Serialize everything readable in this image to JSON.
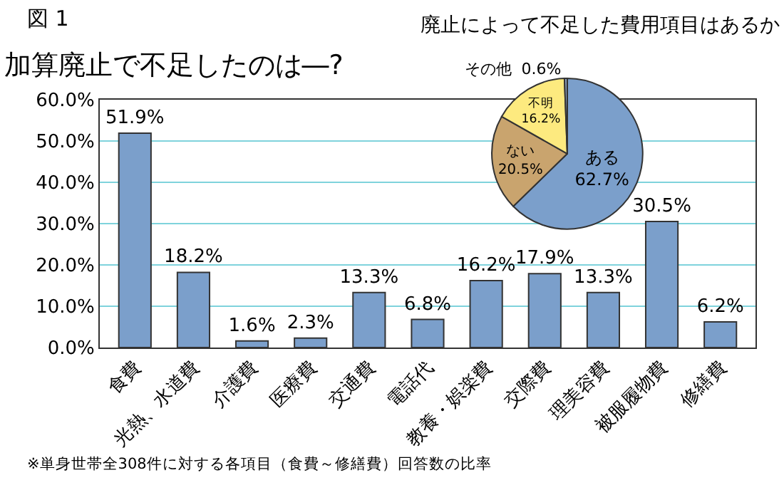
{
  "chart_data": [
    {
      "type": "bar",
      "title": "加算廃止で不足したのは―?",
      "annotations": [
        "図 1",
        "※単身世帯全308件に対する各項目（食費～修繕費）回答数の比率"
      ],
      "categories": [
        "食費",
        "光熱、水道費",
        "介護費",
        "医療費",
        "交通費",
        "電話代",
        "教養・娯楽費",
        "交際費",
        "理美容費",
        "被服履物費",
        "修繕費"
      ],
      "values": [
        51.9,
        18.2,
        1.6,
        2.3,
        13.3,
        6.8,
        16.2,
        17.9,
        13.3,
        30.5,
        6.2
      ],
      "value_labels": [
        "51.9%",
        "18.2%",
        "1.6%",
        "2.3%",
        "13.3%",
        "6.8%",
        "16.2%",
        "17.9%",
        "13.3%",
        "30.5%",
        "6.2%"
      ],
      "color": "#7b9fcb",
      "ylim": [
        0,
        60
      ],
      "yticks": [
        {
          "value": 0,
          "label": "0.0%"
        },
        {
          "value": 10,
          "label": "10.0%"
        },
        {
          "value": 20,
          "label": "20.0%"
        },
        {
          "value": 30,
          "label": "30.0%"
        },
        {
          "value": 40,
          "label": "40.0%"
        },
        {
          "value": 50,
          "label": "50.0%"
        },
        {
          "value": 60,
          "label": "60.0%"
        }
      ],
      "grid": "y"
    },
    {
      "type": "pie",
      "title": "廃止によって不足した費用項目はあるか",
      "categories": [
        "ある",
        "ない",
        "不明",
        "その他"
      ],
      "values": [
        62.7,
        20.5,
        16.2,
        0.6
      ],
      "value_labels": [
        "62.7%",
        "20.5%",
        "16.2%",
        "0.6%"
      ],
      "colors": [
        "#7b9fcb",
        "#c9a46e",
        "#fdea7f",
        "#8ea2c0"
      ]
    }
  ]
}
